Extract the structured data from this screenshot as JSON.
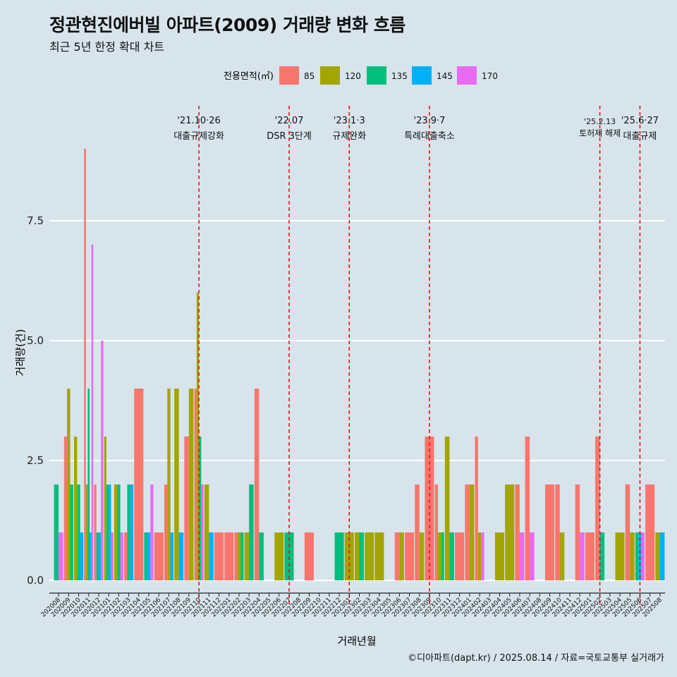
{
  "title": "정관현진에버빌 아파트(2009) 거래량 변화 흐름",
  "subtitle": "최근 5년 한정 확대 차트",
  "caption": "©디아파트(dapt.kr) / 2025.08.14 / 자료=국토교통부 실거래가",
  "colors": {
    "background": "#d7e4ec",
    "gridline": "#ffffff",
    "event_line": "#e8141a",
    "area_85": "#f8766d",
    "area_120": "#a3a500",
    "area_135": "#00bf7d",
    "area_145": "#00b0f6",
    "area_170": "#e76bf3"
  },
  "chart_data": {
    "type": "bar",
    "xlabel": "거래년월",
    "ylabel": "거래량(건)",
    "legend_title": "전용면적(㎡)",
    "legend_position": "top",
    "ylim": [
      -0.3,
      9.0
    ],
    "y_ticks": [
      0.0,
      2.5,
      5.0,
      7.5
    ],
    "y_tick_labels": [
      "0.0",
      "2.5",
      "5.0",
      "7.5"
    ],
    "grid": "horizontal",
    "categories": [
      "202008",
      "202009",
      "202010",
      "202011",
      "202012",
      "202101",
      "202102",
      "202103",
      "202104",
      "202105",
      "202106",
      "202107",
      "202108",
      "202109",
      "202110",
      "202111",
      "202112",
      "202201",
      "202202",
      "202203",
      "202204",
      "202205",
      "202206",
      "202207",
      "202208",
      "202209",
      "202210",
      "202211",
      "202212",
      "202301",
      "202302",
      "202303",
      "202304",
      "202305",
      "202306",
      "202307",
      "202308",
      "202309",
      "202310",
      "202311",
      "202312",
      "202401",
      "202402",
      "202403",
      "202404",
      "202405",
      "202406",
      "202407",
      "202408",
      "202409",
      "202410",
      "202411",
      "202412",
      "202501",
      "202502",
      "202503",
      "202504",
      "202505",
      "202506",
      "202507",
      "202508"
    ],
    "series": [
      {
        "name": "85",
        "values": [
          0,
          3,
          0,
          9,
          2,
          0,
          0,
          1,
          4,
          0,
          1,
          2,
          0,
          3,
          4,
          0,
          1,
          1,
          1,
          0,
          4,
          0,
          0,
          0,
          0,
          1,
          0,
          0,
          0,
          0,
          0,
          0,
          0,
          0,
          1,
          1,
          2,
          3,
          2,
          0,
          1,
          2,
          3,
          0,
          0,
          0,
          2,
          3,
          0,
          2,
          2,
          0,
          2,
          1,
          3,
          0,
          0,
          2,
          0,
          2,
          0
        ]
      },
      {
        "name": "120",
        "values": [
          0,
          4,
          3,
          2,
          0,
          3,
          2,
          0,
          0,
          0,
          0,
          4,
          4,
          4,
          6,
          2,
          0,
          0,
          1,
          1,
          0,
          0,
          1,
          0,
          0,
          0,
          0,
          0,
          0,
          1,
          1,
          1,
          1,
          0,
          1,
          0,
          1,
          0,
          1,
          3,
          0,
          2,
          1,
          0,
          1,
          2,
          0,
          0,
          0,
          0,
          1,
          0,
          0,
          0,
          0,
          0,
          1,
          1,
          0,
          0,
          1
        ]
      },
      {
        "name": "135",
        "values": [
          2,
          2,
          2,
          4,
          1,
          2,
          2,
          2,
          0,
          1,
          0,
          0,
          0,
          0,
          3,
          0,
          0,
          0,
          1,
          2,
          1,
          0,
          0,
          1,
          0,
          0,
          0,
          0,
          1,
          0,
          1,
          0,
          0,
          0,
          0,
          0,
          0,
          0,
          1,
          1,
          0,
          0,
          0,
          0,
          0,
          0,
          0,
          0,
          0,
          0,
          0,
          0,
          0,
          0,
          1,
          0,
          0,
          0,
          1,
          0,
          0
        ]
      },
      {
        "name": "145",
        "values": [
          0,
          0,
          1,
          1,
          1,
          2,
          0,
          2,
          0,
          1,
          0,
          1,
          1,
          0,
          0,
          1,
          0,
          0,
          0,
          0,
          0,
          0,
          0,
          0,
          0,
          0,
          0,
          0,
          0,
          0,
          0,
          0,
          0,
          0,
          0,
          0,
          0,
          0,
          0,
          0,
          0,
          0,
          0,
          0,
          0,
          0,
          0,
          0,
          0,
          0,
          0,
          0,
          0,
          0,
          0,
          0,
          0,
          0,
          1,
          0,
          1
        ]
      },
      {
        "name": "170",
        "values": [
          1,
          0,
          0,
          7,
          5,
          1,
          1,
          0,
          0,
          2,
          0,
          0,
          0,
          0,
          2,
          0,
          0,
          0,
          0,
          0,
          0,
          0,
          0,
          0,
          0,
          0,
          0,
          0,
          0,
          0,
          0,
          0,
          0,
          0,
          0,
          0,
          0,
          0,
          0,
          0,
          0,
          0,
          1,
          0,
          0,
          0,
          1,
          1,
          0,
          0,
          0,
          0,
          1,
          0,
          0,
          0,
          0,
          0,
          1,
          0,
          0
        ]
      }
    ],
    "events": [
      {
        "category": "202110",
        "date": "'21.10·26",
        "label": "대출규제강화"
      },
      {
        "category": "202207",
        "date": "'22.07",
        "label": "DSR 3단계"
      },
      {
        "category": "202301",
        "date": "'23.1·3",
        "label": "규제완화"
      },
      {
        "category": "202309",
        "date": "'23.9·7",
        "label": "특례대출축소"
      },
      {
        "category": "202502",
        "date": "'25.2.13",
        "label": "토허제 해제"
      },
      {
        "category": "202506",
        "date": "'25.6·27",
        "label": "대출규제"
      }
    ]
  }
}
